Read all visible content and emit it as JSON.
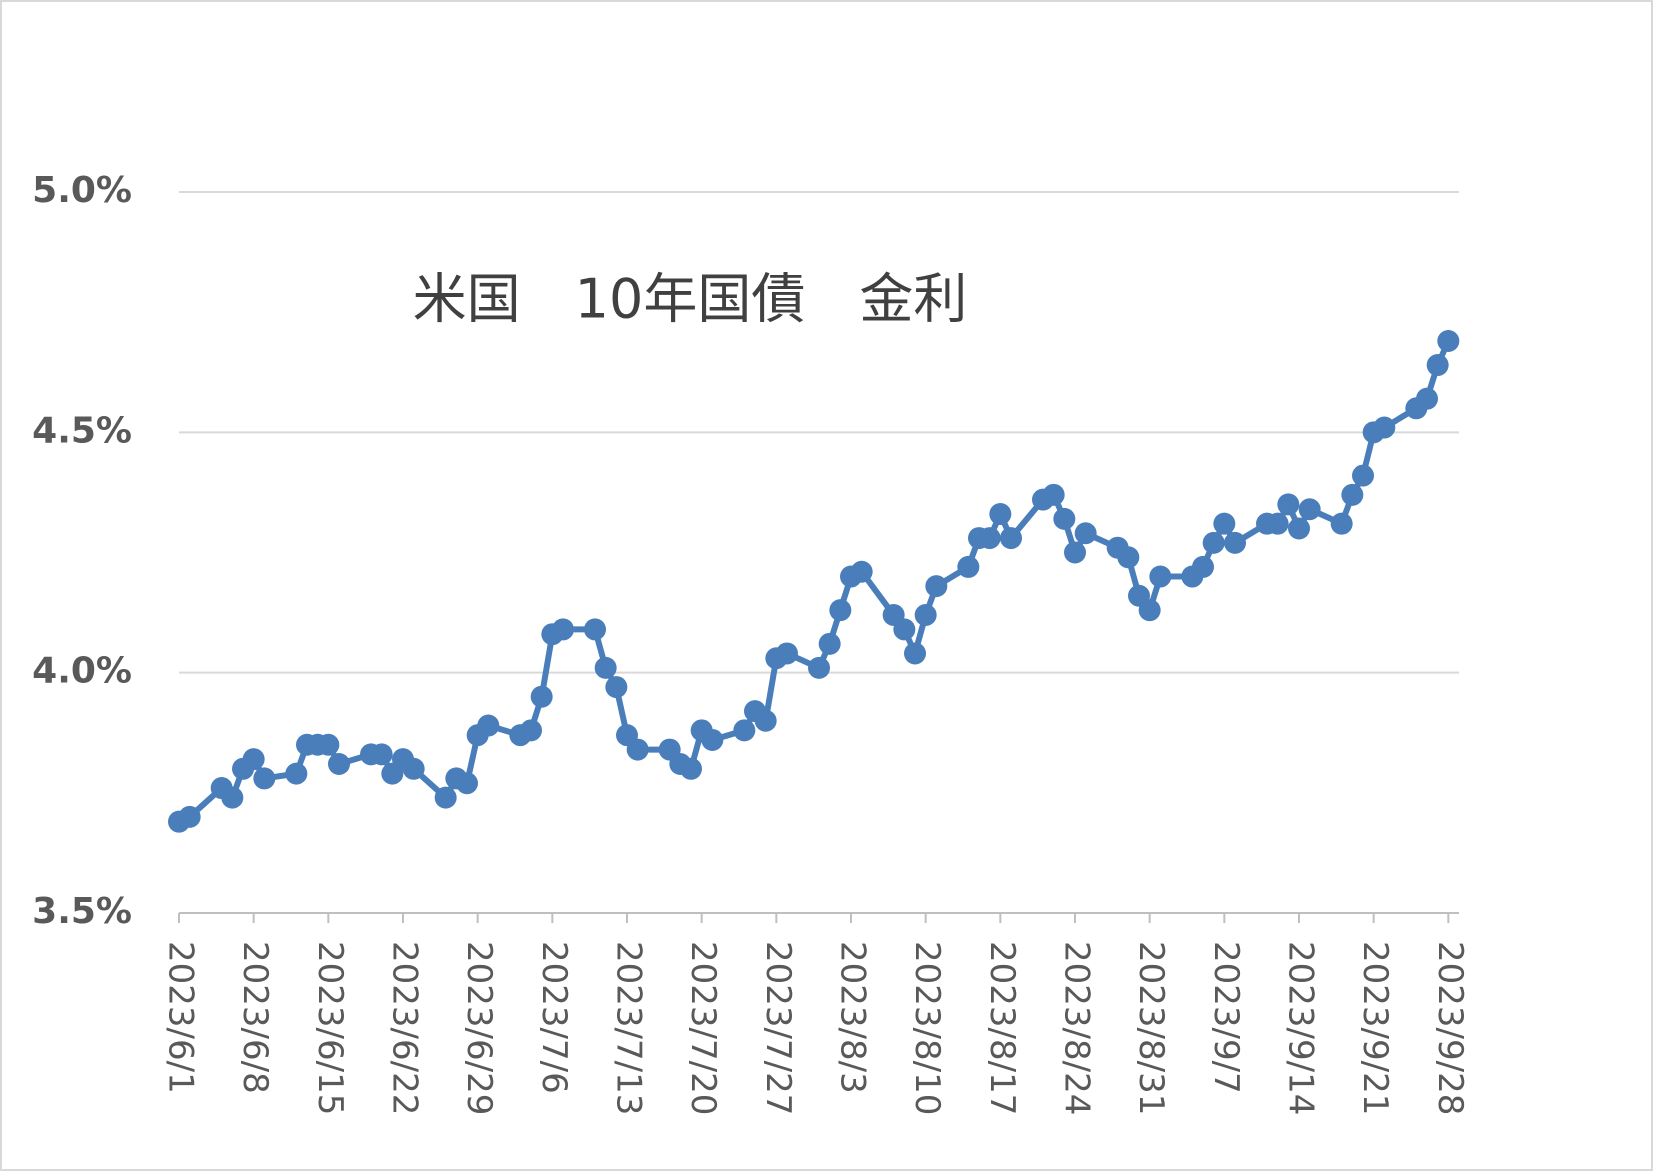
{
  "chart_data": {
    "type": "line",
    "title": "米国　10年国債　金利",
    "x": [
      "2023/6/1",
      "2023/6/2",
      "2023/6/5",
      "2023/6/6",
      "2023/6/7",
      "2023/6/8",
      "2023/6/9",
      "2023/6/12",
      "2023/6/13",
      "2023/6/14",
      "2023/6/15",
      "2023/6/16",
      "2023/6/19",
      "2023/6/20",
      "2023/6/21",
      "2023/6/22",
      "2023/6/23",
      "2023/6/26",
      "2023/6/27",
      "2023/6/28",
      "2023/6/29",
      "2023/6/30",
      "2023/7/3",
      "2023/7/4",
      "2023/7/5",
      "2023/7/6",
      "2023/7/7",
      "2023/7/10",
      "2023/7/11",
      "2023/7/12",
      "2023/7/13",
      "2023/7/14",
      "2023/7/17",
      "2023/7/18",
      "2023/7/19",
      "2023/7/20",
      "2023/7/21",
      "2023/7/24",
      "2023/7/25",
      "2023/7/26",
      "2023/7/27",
      "2023/7/28",
      "2023/7/31",
      "2023/8/1",
      "2023/8/2",
      "2023/8/3",
      "2023/8/4",
      "2023/8/7",
      "2023/8/8",
      "2023/8/9",
      "2023/8/10",
      "2023/8/11",
      "2023/8/14",
      "2023/8/15",
      "2023/8/16",
      "2023/8/17",
      "2023/8/18",
      "2023/8/21",
      "2023/8/22",
      "2023/8/23",
      "2023/8/24",
      "2023/8/25",
      "2023/8/28",
      "2023/8/29",
      "2023/8/30",
      "2023/8/31",
      "2023/9/1",
      "2023/9/4",
      "2023/9/5",
      "2023/9/6",
      "2023/9/7",
      "2023/9/8",
      "2023/9/11",
      "2023/9/12",
      "2023/9/13",
      "2023/9/14",
      "2023/9/15",
      "2023/9/18",
      "2023/9/19",
      "2023/9/20",
      "2023/9/21",
      "2023/9/22",
      "2023/9/25",
      "2023/9/26",
      "2023/9/27",
      "2023/9/28"
    ],
    "series": [
      {
        "name": "米国10年国債金利",
        "color": "#4a7ebb",
        "values": [
          3.69,
          3.7,
          3.76,
          3.74,
          3.8,
          3.82,
          3.78,
          3.79,
          3.85,
          3.85,
          3.85,
          3.81,
          3.83,
          3.83,
          3.79,
          3.82,
          3.8,
          3.74,
          3.78,
          3.77,
          3.87,
          3.89,
          3.87,
          3.88,
          3.95,
          4.08,
          4.09,
          4.09,
          4.01,
          3.97,
          3.87,
          3.84,
          3.84,
          3.81,
          3.8,
          3.88,
          3.86,
          3.88,
          3.92,
          3.9,
          4.03,
          4.04,
          4.01,
          4.06,
          4.13,
          4.2,
          4.21,
          4.12,
          4.09,
          4.04,
          4.12,
          4.18,
          4.22,
          4.28,
          4.28,
          4.33,
          4.28,
          4.36,
          4.37,
          4.32,
          4.25,
          4.29,
          4.26,
          4.24,
          4.16,
          4.13,
          4.2,
          4.2,
          4.22,
          4.27,
          4.31,
          4.27,
          4.31,
          4.31,
          4.35,
          4.3,
          4.34,
          4.31,
          4.37,
          4.41,
          4.5,
          4.51,
          4.55,
          4.57,
          4.64,
          4.69
        ]
      }
    ],
    "xlim": [
      "2023/6/1",
      "2023/9/29"
    ],
    "xticks": [
      "2023/6/1",
      "2023/6/8",
      "2023/6/15",
      "2023/6/22",
      "2023/6/29",
      "2023/7/6",
      "2023/7/13",
      "2023/7/20",
      "2023/7/27",
      "2023/8/3",
      "2023/8/10",
      "2023/8/17",
      "2023/8/24",
      "2023/8/31",
      "2023/9/7",
      "2023/9/14",
      "2023/9/21",
      "2023/9/28"
    ],
    "ylim": [
      3.5,
      5.0
    ],
    "yticks": [
      {
        "value": 3.5,
        "label": "3.5%"
      },
      {
        "value": 4.0,
        "label": "4.0%"
      },
      {
        "value": 4.5,
        "label": "4.5%"
      },
      {
        "value": 5.0,
        "label": "5.0%"
      }
    ],
    "grid": true
  }
}
